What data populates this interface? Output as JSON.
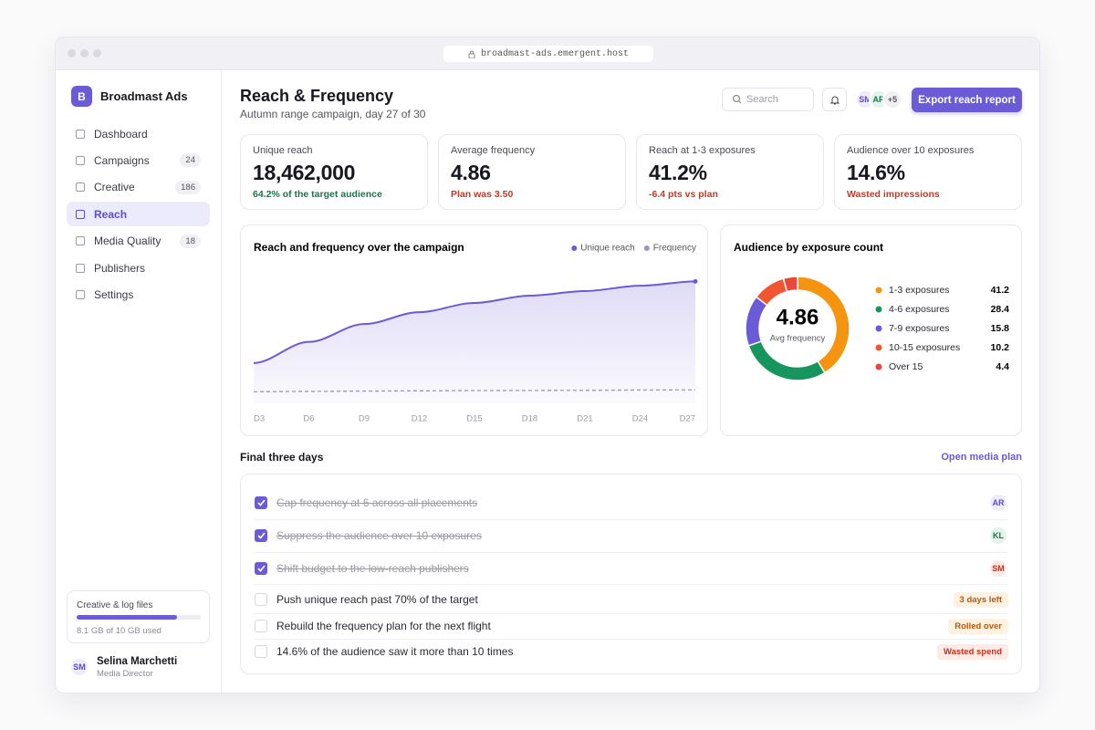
{
  "browser": {
    "url": "broadmast-ads.emergent.host"
  },
  "sidebar": {
    "logo_letter": "B",
    "brand": "Broadmast Ads",
    "nav": [
      {
        "label": "Dashboard"
      },
      {
        "label": "Campaigns",
        "count": 24
      },
      {
        "label": "Creative",
        "count": 186
      },
      {
        "label": "Reach",
        "active": true
      },
      {
        "label": "Media Quality",
        "count": 18
      },
      {
        "label": "Publishers"
      },
      {
        "label": "Settings"
      }
    ],
    "storage": {
      "title": "Creative & log files",
      "used": 8.1,
      "total": 10,
      "label": "8.1 GB of 10 GB used"
    },
    "user": {
      "initials": "SM",
      "name": "Selina Marchetti",
      "role": "Media Director"
    }
  },
  "header": {
    "title": "Reach & Frequency",
    "subtitle": "Autumn range campaign, day 27 of 30",
    "search_placeholder": "Search",
    "avatars": [
      "SM",
      "AR"
    ],
    "more": "+5",
    "button": "Export reach report"
  },
  "kpis": [
    {
      "label": "Unique reach",
      "value": "18,462,000",
      "note": "64.2% of the target audience",
      "tone": "good"
    },
    {
      "label": "Average frequency",
      "value": "4.86",
      "note": "Plan was 3.50",
      "tone": "bad"
    },
    {
      "label": "Reach at 1-3 exposures",
      "value": "41.2%",
      "note": "-6.4 pts vs plan",
      "tone": "bad"
    },
    {
      "label": "Audience over 10 exposures",
      "value": "14.6%",
      "note": "Wasted impressions",
      "tone": "bad"
    }
  ],
  "chart_data": [
    {
      "type": "area",
      "title": "Reach and frequency over the campaign",
      "categories": [
        "D3",
        "D6",
        "D9",
        "D12",
        "D15",
        "D18",
        "D21",
        "D24",
        "D27"
      ],
      "series": [
        {
          "name": "Unique reach",
          "color": "#6b5bd6",
          "values": [
            6100000,
            9300000,
            12000000,
            13800000,
            15200000,
            16300000,
            17000000,
            17800000,
            18462000
          ]
        },
        {
          "name": "Frequency",
          "color": "#9a92c8",
          "axis": "y2",
          "dashed": true,
          "values": [
            4.2,
            4.3,
            4.4,
            4.5,
            4.6,
            4.65,
            4.7,
            4.8,
            4.86
          ]
        }
      ],
      "ylim": [
        0,
        21000000
      ],
      "y2lim": [
        0,
        50
      ]
    },
    {
      "type": "donut",
      "title": "Audience by exposure count",
      "center_value": "4.86",
      "center_label": "Avg frequency",
      "categories": [
        "1-3 exposures",
        "4-6 exposures",
        "7-9 exposures",
        "10-15 exposures",
        "Over 15"
      ],
      "values": [
        41.2,
        28.4,
        15.8,
        10.2,
        4.4
      ],
      "colors": [
        "#f5940f",
        "#16955f",
        "#6b5bd6",
        "#f0562f",
        "#e9483b"
      ]
    }
  ],
  "tasks": {
    "title": "Final three days",
    "link": "Open media plan",
    "items": [
      {
        "text": "Cap frequency at 6 across all placements",
        "done": true,
        "assignee": "AR",
        "tone": "purple"
      },
      {
        "text": "Suppress the audience over 10 exposures",
        "done": true,
        "assignee": "KL",
        "tone": "green"
      },
      {
        "text": "Shift budget to the low-reach publishers",
        "done": true,
        "assignee": "SM",
        "tone": "red"
      },
      {
        "text": "Push unique reach past 70% of the target",
        "done": false,
        "tag": "3 days left",
        "tone": "warning"
      },
      {
        "text": "Rebuild the frequency plan for the next flight",
        "done": false,
        "tag": "Rolled over",
        "tone": "warning"
      },
      {
        "text": "14.6% of the audience saw it more than 10 times",
        "done": false,
        "tag": "Wasted spend",
        "tone": "danger"
      }
    ]
  }
}
